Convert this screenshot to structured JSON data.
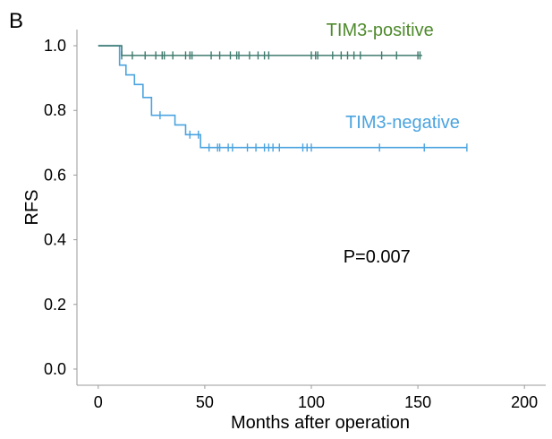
{
  "panel_label": "B",
  "chart_data": {
    "type": "line",
    "step": true,
    "xlabel": "Months after operation",
    "ylabel": "RFS",
    "xlim": [
      -10,
      210
    ],
    "ylim": [
      -0.05,
      1.05
    ],
    "xticks": [
      0,
      50,
      100,
      150,
      200
    ],
    "yticks": [
      0.0,
      0.2,
      0.4,
      0.6,
      0.8,
      1.0
    ],
    "ytick_labels": [
      "0.0",
      "0.2",
      "0.4",
      "0.6",
      "0.8",
      "1.0"
    ],
    "grid": false,
    "annotations": [
      {
        "text": "P=0.007",
        "x": 115,
        "y": 0.33
      }
    ],
    "series": [
      {
        "name": "TIM3-positive",
        "color": "#3f7a6e",
        "label_color": "#4e8a2c",
        "label_pos": {
          "x": 107,
          "y": 1.03
        },
        "steps": [
          [
            0,
            1.0
          ],
          [
            11,
            0.97
          ],
          [
            152,
            0.97
          ]
        ],
        "censored": [
          11,
          16,
          22,
          27,
          30,
          31,
          35,
          41,
          43,
          44,
          53,
          57,
          62,
          65,
          66,
          71,
          75,
          78,
          80,
          100,
          102,
          103,
          110,
          114,
          117,
          120,
          123,
          133,
          140,
          150,
          151
        ]
      },
      {
        "name": "TIM3-negative",
        "color": "#4aa3df",
        "label_color": "#4aa3df",
        "label_pos": {
          "x": 116,
          "y": 0.745
        },
        "steps": [
          [
            0,
            1.0
          ],
          [
            10,
            1.0
          ],
          [
            10,
            0.94
          ],
          [
            13,
            0.94
          ],
          [
            13,
            0.91
          ],
          [
            17,
            0.91
          ],
          [
            17,
            0.88
          ],
          [
            21,
            0.88
          ],
          [
            21,
            0.84
          ],
          [
            25,
            0.84
          ],
          [
            25,
            0.785
          ],
          [
            36,
            0.785
          ],
          [
            36,
            0.755
          ],
          [
            41,
            0.755
          ],
          [
            41,
            0.725
          ],
          [
            48,
            0.725
          ],
          [
            48,
            0.685
          ],
          [
            173,
            0.685
          ]
        ],
        "censored": [
          29,
          43,
          47,
          52,
          56,
          57,
          61,
          63,
          70,
          74,
          78,
          80,
          82,
          85,
          96,
          98,
          100,
          132,
          153,
          173
        ]
      }
    ]
  }
}
